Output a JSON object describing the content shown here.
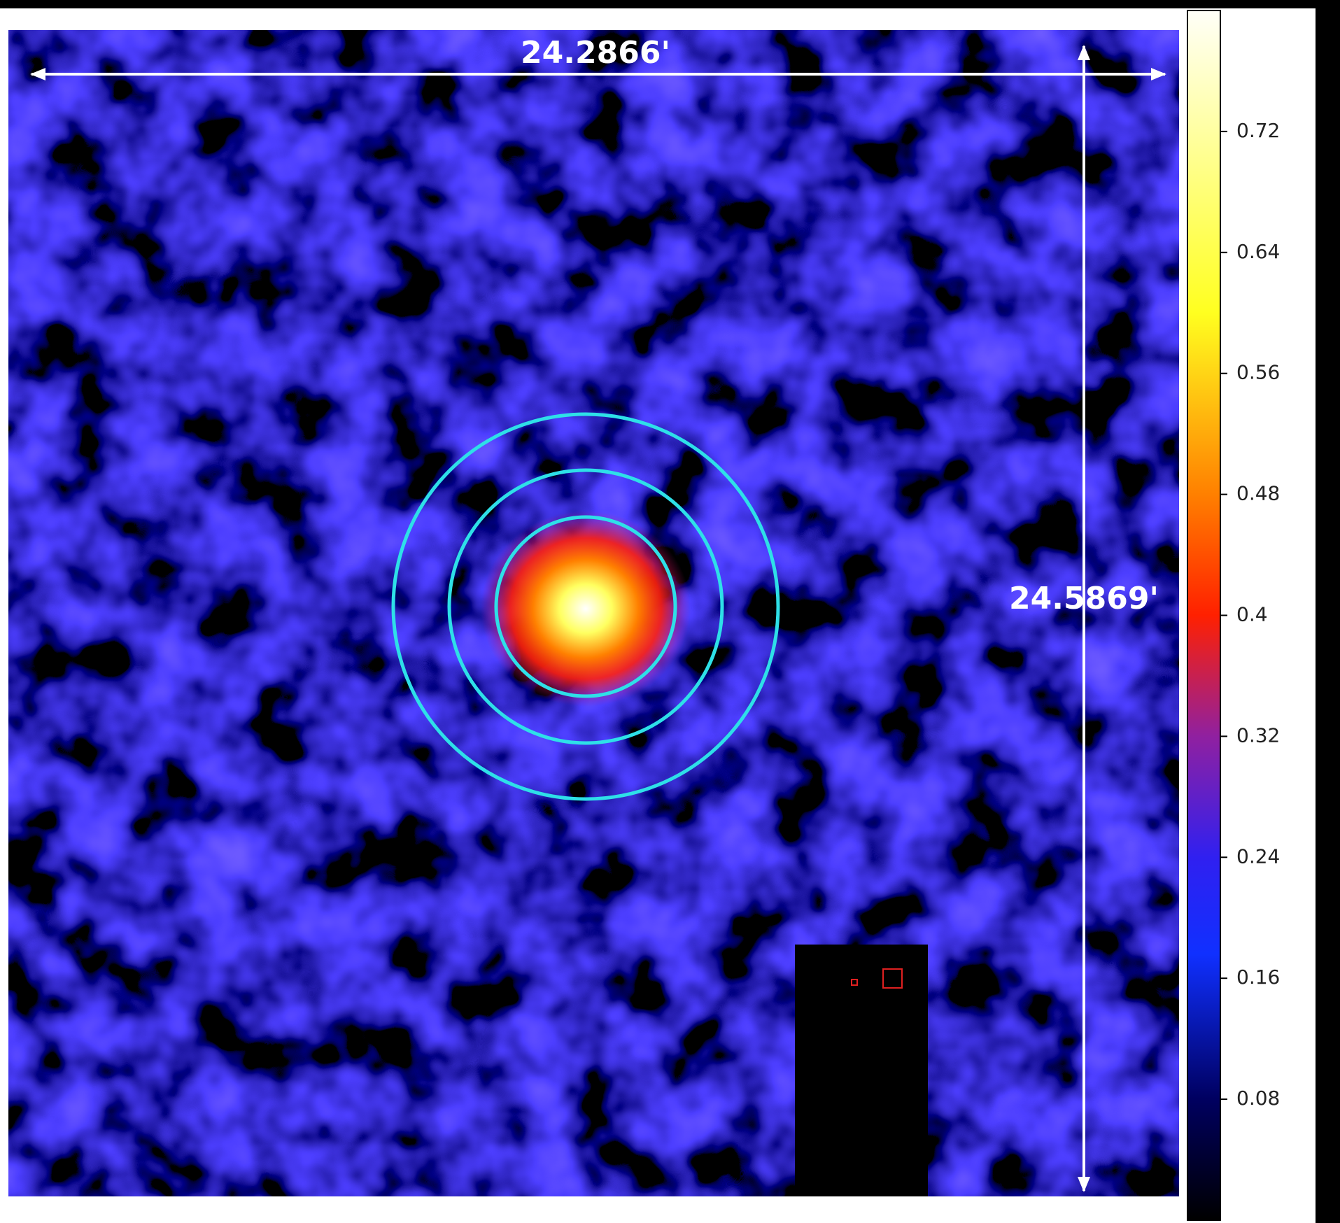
{
  "image": {
    "width_label": "24.2866'",
    "height_label": "24.5869'"
  },
  "colorbar": {
    "range": [
      0,
      0.8
    ],
    "ticks": [
      0.08,
      0.16,
      0.24,
      0.32,
      0.4,
      0.48,
      0.56,
      0.64,
      0.72
    ]
  }
}
